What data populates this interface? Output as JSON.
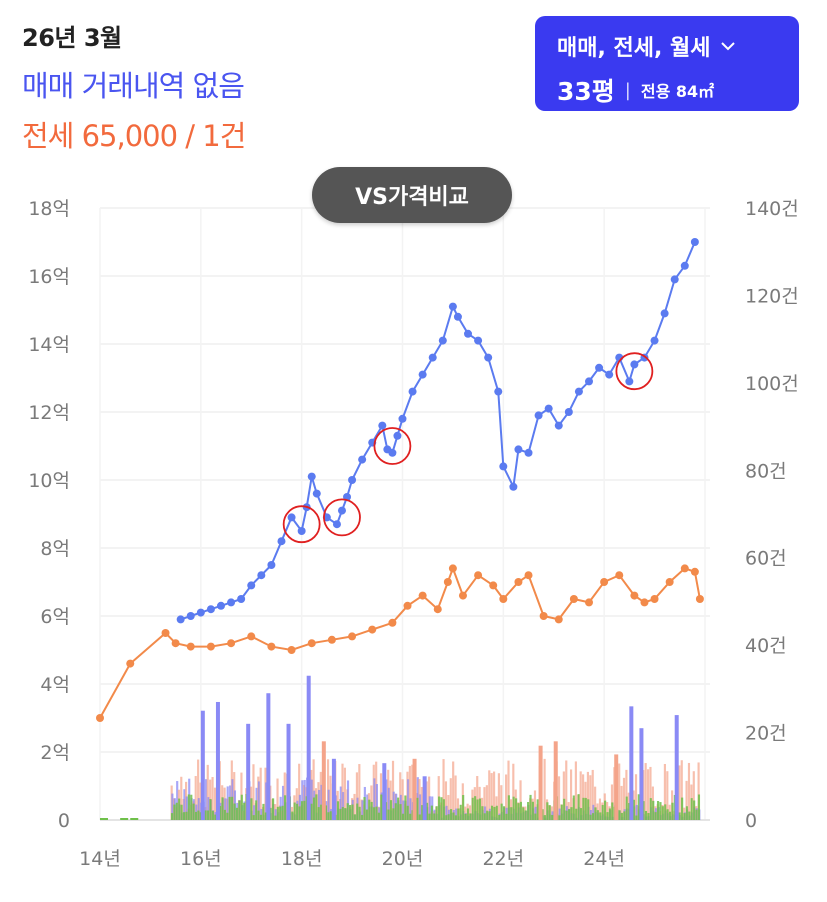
{
  "header": {
    "date": "26년 3월",
    "sale_status": "매매 거래내역 없음",
    "jeonse_summary": "전세 65,000 / 1건"
  },
  "filter": {
    "types_label": "매매, 전세, 월세",
    "size_label": "33평",
    "area_label": "전용 84㎡",
    "icon": "chevron-down-icon"
  },
  "vs_button": {
    "label": "VS가격비교"
  },
  "colors": {
    "sale": "#5b7bf0",
    "jeonse": "#f28a4a",
    "volume_sale": "#8a8af5",
    "volume_jeonse": "#f4a48a",
    "volume_rent": "#6fc04a",
    "highlight": "#e02020"
  },
  "chart_data": {
    "type": "line",
    "x_ticks": [
      "14년",
      "16년",
      "18년",
      "20년",
      "22년",
      "24년"
    ],
    "y_left_ticks": [
      "0",
      "2억",
      "4억",
      "6억",
      "8억",
      "10억",
      "12억",
      "14억",
      "16억",
      "18억"
    ],
    "y_right_ticks": [
      "0",
      "20건",
      "40건",
      "60건",
      "80건",
      "100건",
      "120건",
      "140건"
    ],
    "ylim_left": [
      0,
      18
    ],
    "ylim_right": [
      0,
      140
    ],
    "xlim": [
      2014,
      2026.1
    ],
    "series": [
      {
        "name": "매매",
        "x": [
          2015.6,
          2015.8,
          2016.0,
          2016.2,
          2016.4,
          2016.6,
          2016.8,
          2017.0,
          2017.2,
          2017.4,
          2017.6,
          2017.8,
          2018.0,
          2018.1,
          2018.2,
          2018.3,
          2018.5,
          2018.7,
          2018.8,
          2018.9,
          2019.0,
          2019.2,
          2019.4,
          2019.6,
          2019.7,
          2019.8,
          2019.9,
          2020.0,
          2020.2,
          2020.4,
          2020.6,
          2020.8,
          2021.0,
          2021.1,
          2021.3,
          2021.5,
          2021.7,
          2021.9,
          2022.0,
          2022.2,
          2022.3,
          2022.5,
          2022.7,
          2022.9,
          2023.1,
          2023.3,
          2023.5,
          2023.7,
          2023.9,
          2024.1,
          2024.3,
          2024.5,
          2024.6,
          2024.8,
          2025.0,
          2025.2,
          2025.4,
          2025.6,
          2025.8
        ],
        "values": [
          5.9,
          6.0,
          6.1,
          6.2,
          6.3,
          6.4,
          6.5,
          6.9,
          7.2,
          7.5,
          8.2,
          8.9,
          8.5,
          9.2,
          10.1,
          9.6,
          8.9,
          8.7,
          9.1,
          9.5,
          10.0,
          10.6,
          11.1,
          11.6,
          10.9,
          10.8,
          11.3,
          11.8,
          12.6,
          13.1,
          13.6,
          14.1,
          15.1,
          14.8,
          14.3,
          14.1,
          13.6,
          12.6,
          10.4,
          9.8,
          10.9,
          10.8,
          11.9,
          12.1,
          11.6,
          12.0,
          12.6,
          12.9,
          13.3,
          13.1,
          13.6,
          12.9,
          13.4,
          13.6,
          14.1,
          14.9,
          15.9,
          16.3,
          17.0
        ]
      },
      {
        "name": "전세",
        "x": [
          2014.0,
          2014.6,
          2015.3,
          2015.5,
          2015.8,
          2016.2,
          2016.6,
          2017.0,
          2017.4,
          2017.8,
          2018.2,
          2018.6,
          2019.0,
          2019.4,
          2019.8,
          2020.1,
          2020.4,
          2020.7,
          2020.9,
          2021.0,
          2021.2,
          2021.5,
          2021.8,
          2022.0,
          2022.3,
          2022.5,
          2022.8,
          2023.1,
          2023.4,
          2023.7,
          2024.0,
          2024.3,
          2024.6,
          2024.8,
          2025.0,
          2025.3,
          2025.6,
          2025.8,
          2025.9
        ],
        "values": [
          3.0,
          4.6,
          5.5,
          5.2,
          5.1,
          5.1,
          5.2,
          5.4,
          5.1,
          5.0,
          5.2,
          5.3,
          5.4,
          5.6,
          5.8,
          6.3,
          6.6,
          6.2,
          7.0,
          7.4,
          6.6,
          7.2,
          6.9,
          6.5,
          7.0,
          7.2,
          6.0,
          5.9,
          6.5,
          6.4,
          7.0,
          7.2,
          6.6,
          6.4,
          6.5,
          7.0,
          7.4,
          7.3,
          6.5
        ]
      }
    ],
    "highlights": [
      {
        "x": 2018.0,
        "y": 8.7
      },
      {
        "x": 2018.8,
        "y": 8.9
      },
      {
        "x": 2019.8,
        "y": 11.0
      },
      {
        "x": 2024.6,
        "y": 13.2
      }
    ],
    "volume": {
      "axis": "right",
      "sale_peaks": [
        {
          "x": 2016.0,
          "v": 25
        },
        {
          "x": 2016.3,
          "v": 27
        },
        {
          "x": 2016.9,
          "v": 22
        },
        {
          "x": 2017.3,
          "v": 29
        },
        {
          "x": 2017.7,
          "v": 22
        },
        {
          "x": 2018.1,
          "v": 33
        },
        {
          "x": 2018.6,
          "v": 14
        },
        {
          "x": 2019.6,
          "v": 13
        },
        {
          "x": 2020.4,
          "v": 10
        },
        {
          "x": 2024.5,
          "v": 26
        },
        {
          "x": 2024.7,
          "v": 21
        },
        {
          "x": 2025.4,
          "v": 24
        }
      ],
      "jeonse_peaks": [
        {
          "x": 2018.4,
          "v": 18
        },
        {
          "x": 2020.2,
          "v": 14
        },
        {
          "x": 2022.7,
          "v": 17
        },
        {
          "x": 2023.0,
          "v": 18
        },
        {
          "x": 2024.2,
          "v": 15
        }
      ]
    }
  }
}
